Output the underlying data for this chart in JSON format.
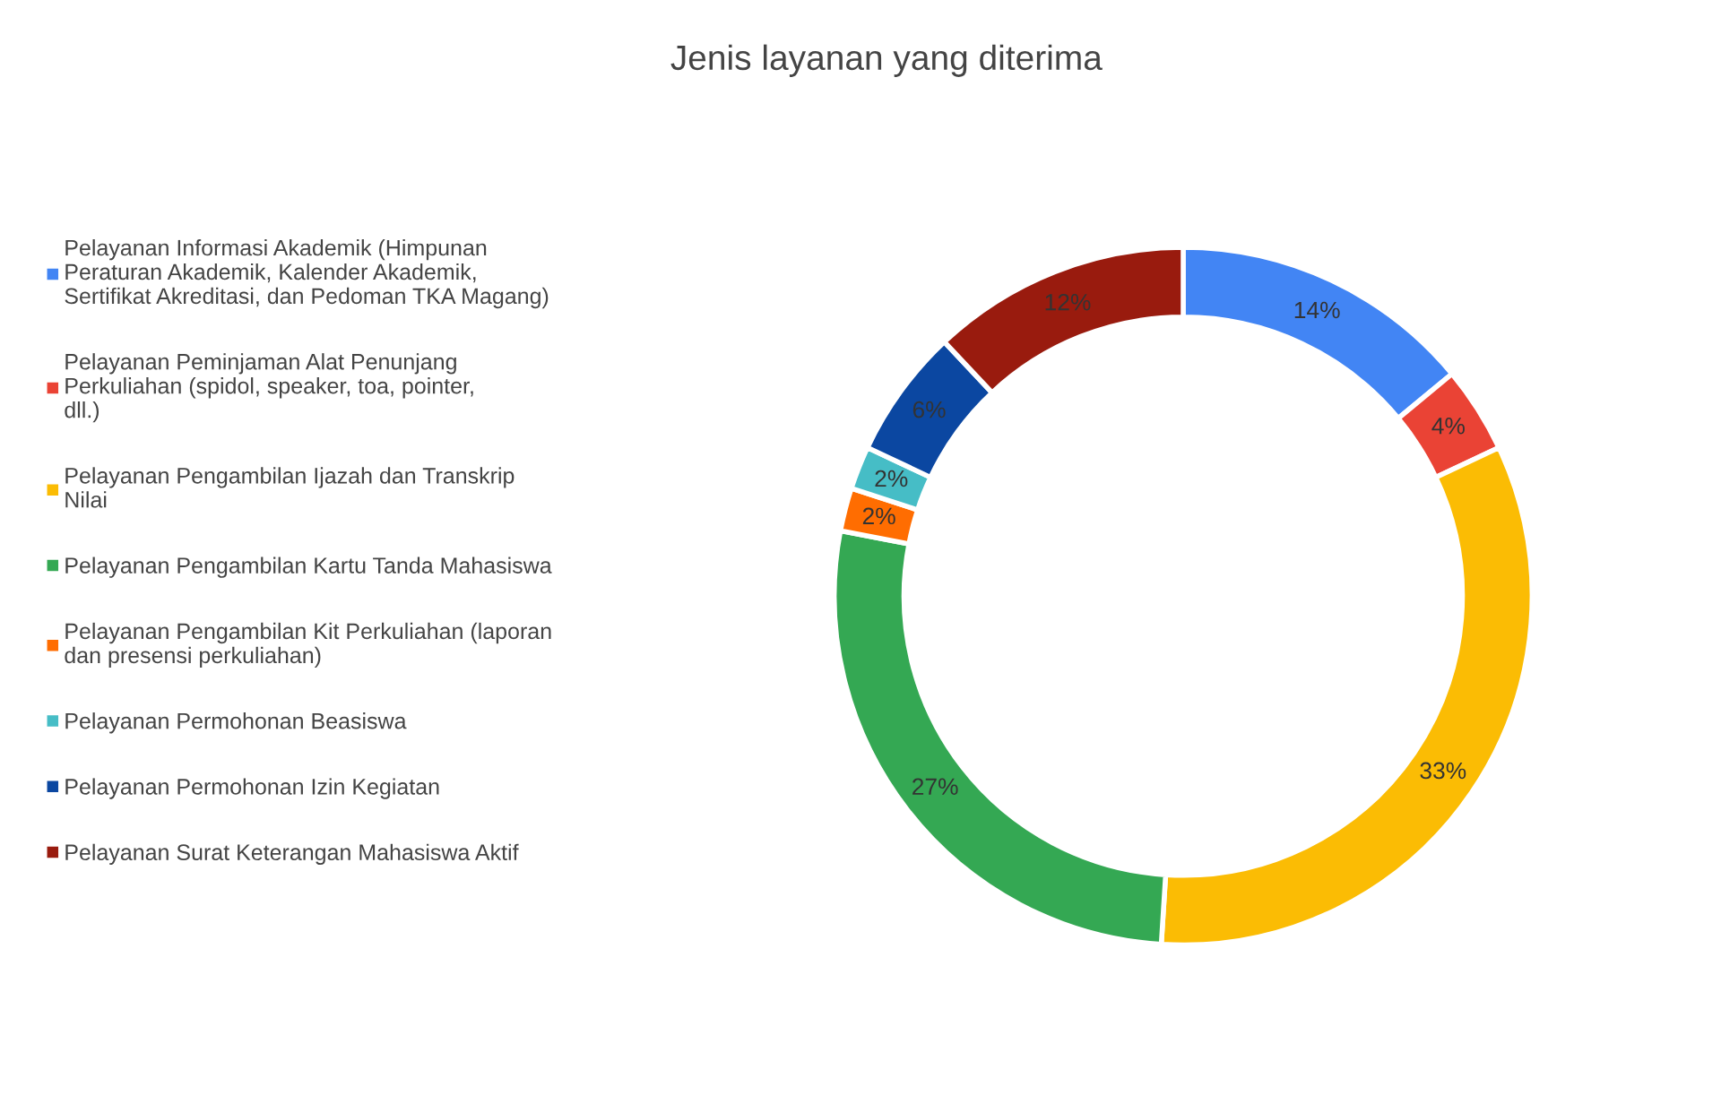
{
  "chart_data": {
    "type": "donut",
    "title": "Jenis layanan yang diterima",
    "categories": [
      "Pelayanan Informasi Akademik (Himpunan Peraturan Akademik, Kalender Akademik, Sertifikat Akreditasi, dan Pedoman TKA Magang)",
      "Pelayanan Peminjaman Alat Penunjang Perkuliahan (spidol, speaker, toa, pointer, dll.)",
      "Pelayanan Pengambilan Ijazah dan Transkrip Nilai",
      "Pelayanan Pengambilan Kartu Tanda Mahasiswa",
      "Pelayanan Pengambilan Kit Perkuliahan (laporan dan presensi perkuliahan)",
      "Pelayanan Permohonan Beasiswa",
      "Pelayanan Permohonan Izin Kegiatan",
      "Pelayanan Surat Keterangan Mahasiswa Aktif"
    ],
    "values": [
      14,
      4,
      33,
      27,
      2,
      2,
      6,
      12
    ],
    "value_labels": [
      "14%",
      "4%",
      "33%",
      "27%",
      "2%",
      "2%",
      "6%",
      "12%"
    ],
    "colors": [
      "#4285f4",
      "#ea4335",
      "#fbbc04",
      "#34a853",
      "#ff6d01",
      "#46bdc6",
      "#0b47a1",
      "#991b0e"
    ],
    "legend": "left"
  }
}
